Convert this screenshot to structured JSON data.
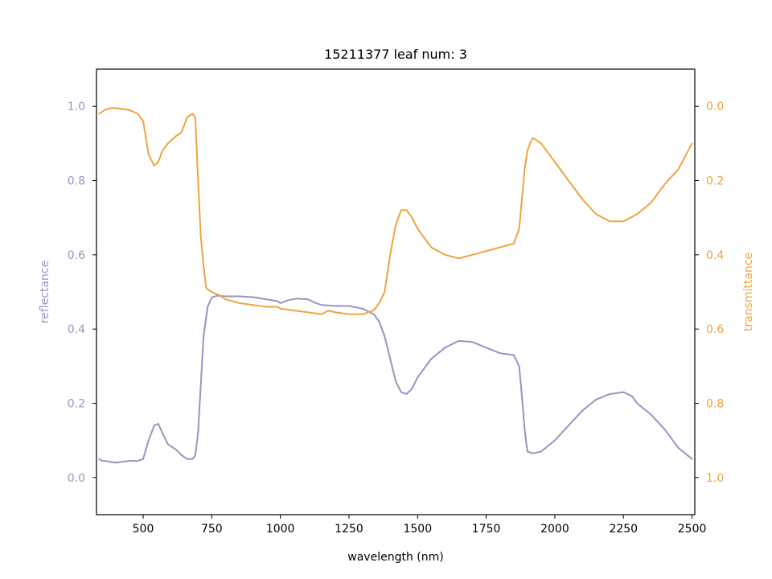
{
  "chart_data": {
    "type": "line",
    "title": "15211377 leaf num: 3",
    "xlabel": "wavelength (nm)",
    "ylabel_left": "reflectance",
    "ylabel_right": "transmittance",
    "xlim": [
      330,
      2510
    ],
    "ylim_left": [
      -0.1,
      1.1
    ],
    "ylim_right": [
      1.1,
      -0.1
    ],
    "right_axis_inverted": true,
    "grid": false,
    "x_ticks": [
      500,
      750,
      1000,
      1250,
      1500,
      1750,
      2000,
      2250,
      2500
    ],
    "left_ticks": [
      0.0,
      0.2,
      0.4,
      0.6,
      0.8,
      1.0
    ],
    "right_ticks": [
      0.0,
      0.2,
      0.4,
      0.6,
      0.8,
      1.0
    ],
    "left_tick_labels": [
      "0.0",
      "0.2",
      "0.4",
      "0.6",
      "0.8",
      "1.0"
    ],
    "right_tick_labels": [
      "0.0",
      "0.2",
      "0.4",
      "0.6",
      "0.8",
      "1.0"
    ],
    "series": [
      {
        "axis": "left",
        "color": "#9893c4",
        "x": [
          340,
          350,
          360,
          400,
          450,
          480,
          500,
          520,
          540,
          555,
          570,
          590,
          620,
          640,
          660,
          680,
          690,
          700,
          710,
          720,
          735,
          750,
          770,
          800,
          850,
          900,
          950,
          990,
          1000,
          1030,
          1060,
          1100,
          1130,
          1150,
          1200,
          1250,
          1300,
          1340,
          1360,
          1380,
          1400,
          1420,
          1440,
          1460,
          1480,
          1500,
          1550,
          1600,
          1650,
          1700,
          1750,
          1800,
          1850,
          1870,
          1880,
          1890,
          1900,
          1920,
          1950,
          2000,
          2050,
          2100,
          2150,
          2200,
          2250,
          2280,
          2300,
          2350,
          2400,
          2450,
          2500
        ],
        "y": [
          0.05,
          0.045,
          0.045,
          0.04,
          0.045,
          0.045,
          0.05,
          0.1,
          0.14,
          0.145,
          0.12,
          0.09,
          0.075,
          0.06,
          0.05,
          0.05,
          0.06,
          0.12,
          0.25,
          0.38,
          0.46,
          0.485,
          0.49,
          0.488,
          0.488,
          0.486,
          0.48,
          0.475,
          0.47,
          0.478,
          0.482,
          0.48,
          0.47,
          0.465,
          0.462,
          0.462,
          0.455,
          0.44,
          0.42,
          0.38,
          0.32,
          0.26,
          0.23,
          0.225,
          0.24,
          0.27,
          0.32,
          0.35,
          0.368,
          0.365,
          0.35,
          0.335,
          0.33,
          0.3,
          0.22,
          0.13,
          0.07,
          0.065,
          0.07,
          0.1,
          0.14,
          0.18,
          0.21,
          0.225,
          0.23,
          0.22,
          0.2,
          0.17,
          0.13,
          0.08,
          0.05
        ]
      },
      {
        "axis": "right",
        "color": "#f0a33f",
        "x": [
          340,
          360,
          380,
          400,
          450,
          480,
          500,
          520,
          540,
          555,
          570,
          590,
          620,
          640,
          660,
          680,
          690,
          700,
          710,
          720,
          730,
          750,
          780,
          800,
          850,
          900,
          950,
          990,
          1000,
          1050,
          1100,
          1150,
          1175,
          1200,
          1250,
          1300,
          1340,
          1360,
          1380,
          1400,
          1420,
          1440,
          1460,
          1480,
          1500,
          1550,
          1600,
          1650,
          1700,
          1750,
          1800,
          1850,
          1870,
          1880,
          1890,
          1900,
          1910,
          1920,
          1950,
          2000,
          2050,
          2100,
          2150,
          2200,
          2250,
          2300,
          2350,
          2400,
          2450,
          2500
        ],
        "y": [
          0.02,
          0.01,
          0.005,
          0.005,
          0.01,
          0.02,
          0.04,
          0.13,
          0.16,
          0.15,
          0.12,
          0.1,
          0.08,
          0.07,
          0.03,
          0.02,
          0.03,
          0.2,
          0.35,
          0.43,
          0.49,
          0.5,
          0.51,
          0.52,
          0.53,
          0.535,
          0.54,
          0.54,
          0.545,
          0.55,
          0.555,
          0.56,
          0.55,
          0.555,
          0.56,
          0.56,
          0.55,
          0.53,
          0.5,
          0.4,
          0.32,
          0.28,
          0.28,
          0.3,
          0.33,
          0.38,
          0.4,
          0.41,
          0.4,
          0.39,
          0.38,
          0.37,
          0.33,
          0.25,
          0.17,
          0.12,
          0.1,
          0.085,
          0.1,
          0.15,
          0.2,
          0.25,
          0.29,
          0.31,
          0.31,
          0.29,
          0.26,
          0.21,
          0.17,
          0.1
        ]
      }
    ]
  }
}
